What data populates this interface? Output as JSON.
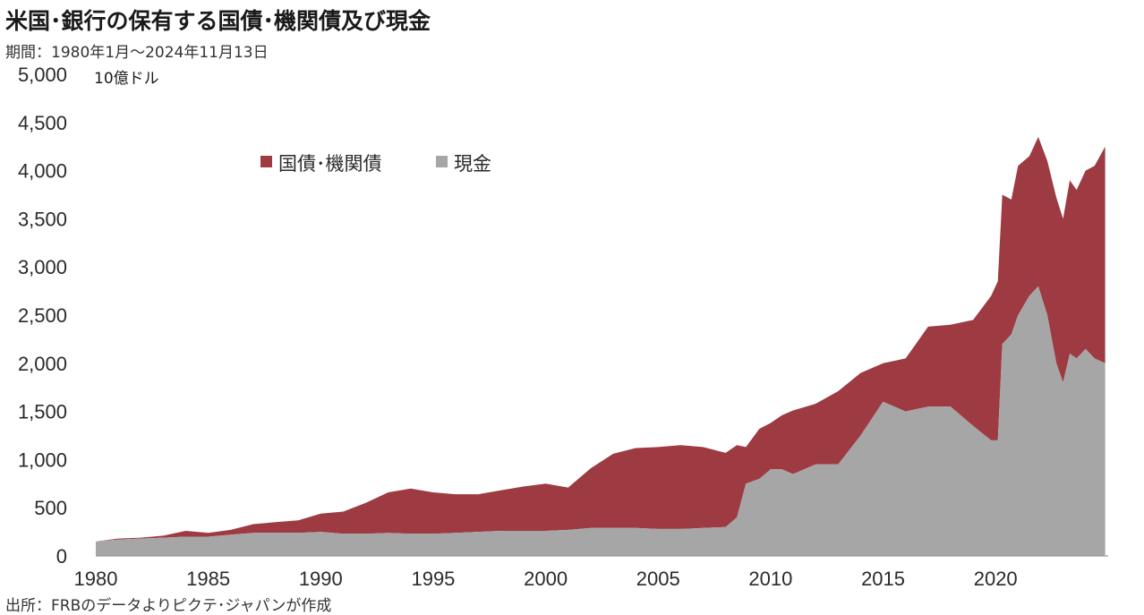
{
  "title": "米国･銀行の保有する国債･機関債及び現金",
  "period": "期間：1980年1月～2024年11月13日",
  "source": "出所：FRBのデータよりピクテ･ジャパンが作成",
  "chart_data": {
    "type": "area",
    "stacked": true,
    "unit": "10億ドル",
    "ylim": [
      0,
      5000
    ],
    "y_ticks": [
      "0",
      "500",
      "1,000",
      "1,500",
      "2,000",
      "2,500",
      "3,000",
      "3,500",
      "4,000",
      "4,500",
      "5,000"
    ],
    "x_ticks": [
      "1980",
      "1985",
      "1990",
      "1995",
      "2000",
      "2005",
      "2010",
      "2015",
      "2020"
    ],
    "legend_position": "top-left",
    "grid": false,
    "x": [
      1980.0,
      1981.0,
      1982.0,
      1983.0,
      1984.0,
      1985.0,
      1986.0,
      1987.0,
      1988.0,
      1989.0,
      1990.0,
      1991.0,
      1992.0,
      1993.0,
      1994.0,
      1995.0,
      1996.0,
      1997.0,
      1998.0,
      1999.0,
      2000.0,
      2001.0,
      2002.0,
      2003.0,
      2004.0,
      2005.0,
      2006.0,
      2007.0,
      2008.0,
      2008.5,
      2008.9,
      2009.5,
      2010.0,
      2010.5,
      2011.0,
      2012.0,
      2013.0,
      2014.0,
      2015.0,
      2016.0,
      2017.0,
      2018.0,
      2019.0,
      2019.8,
      2020.1,
      2020.3,
      2020.7,
      2021.0,
      2021.5,
      2021.9,
      2022.3,
      2022.7,
      2023.0,
      2023.3,
      2023.6,
      2024.0,
      2024.4,
      2024.87
    ],
    "series": [
      {
        "name": "国債･機関債",
        "color": "#9e3a41",
        "values": [
          0,
          10,
          10,
          20,
          60,
          40,
          50,
          90,
          110,
          130,
          190,
          230,
          320,
          420,
          470,
          430,
          400,
          390,
          420,
          460,
          490,
          440,
          620,
          770,
          830,
          850,
          870,
          840,
          770,
          750,
          380,
          520,
          480,
          560,
          660,
          630,
          760,
          650,
          400,
          550,
          830,
          850,
          1100,
          1500,
          1650,
          1550,
          1400,
          1550,
          1450,
          1550,
          1600,
          1720,
          1700,
          1800,
          1750,
          1850,
          2000,
          2250
        ]
      },
      {
        "name": "現金",
        "color": "#a6a6a6",
        "values": [
          150,
          170,
          180,
          190,
          200,
          200,
          220,
          240,
          240,
          240,
          250,
          230,
          230,
          240,
          230,
          230,
          240,
          250,
          260,
          260,
          260,
          270,
          290,
          290,
          290,
          280,
          280,
          290,
          300,
          400,
          750,
          800,
          900,
          900,
          850,
          950,
          950,
          1250,
          1600,
          1500,
          1550,
          1550,
          1350,
          1200,
          1200,
          2200,
          2300,
          2500,
          2700,
          2800,
          2500,
          2000,
          1800,
          2100,
          2050,
          2150,
          2050,
          2000
        ]
      }
    ]
  }
}
